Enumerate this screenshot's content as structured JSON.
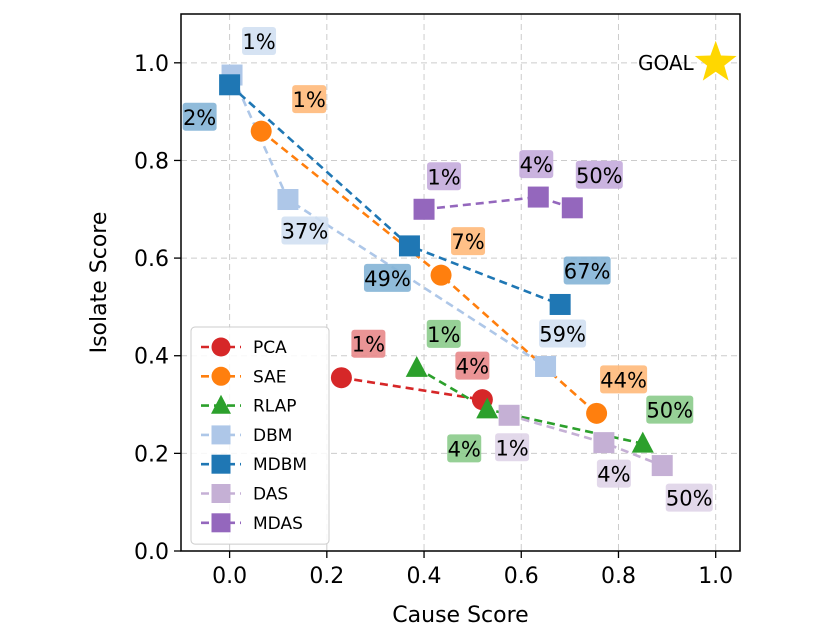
{
  "chart_data": {
    "type": "scatter",
    "xlabel": "Cause Score",
    "ylabel": "Isolate Score",
    "xlim": [
      -0.1,
      1.05
    ],
    "ylim": [
      0.0,
      1.1
    ],
    "xticks": [
      0.0,
      0.2,
      0.4,
      0.6,
      0.8,
      1.0
    ],
    "yticks": [
      0.0,
      0.2,
      0.4,
      0.6,
      0.8,
      1.0
    ],
    "xtick_labels": [
      "0.0",
      "0.2",
      "0.4",
      "0.6",
      "0.8",
      "1.0"
    ],
    "ytick_labels": [
      "0.0",
      "0.2",
      "0.4",
      "0.6",
      "0.8",
      "1.0"
    ],
    "grid": true,
    "legend_position": "lower-left",
    "goal": {
      "label": "GOAL",
      "x": 1.0,
      "y": 1.0,
      "color": "#FFD700"
    },
    "series": [
      {
        "name": "PCA",
        "color": "#d62728",
        "marker": "circle",
        "points": [
          {
            "x": 0.23,
            "y": 0.355,
            "label": "1%"
          },
          {
            "x": 0.52,
            "y": 0.31,
            "label": "4%"
          }
        ]
      },
      {
        "name": "SAE",
        "color": "#ff7f0e",
        "marker": "circle",
        "points": [
          {
            "x": 0.065,
            "y": 0.86,
            "label": "1%"
          },
          {
            "x": 0.435,
            "y": 0.565,
            "label": "7%"
          },
          {
            "x": 0.755,
            "y": 0.282,
            "label": "44%"
          }
        ]
      },
      {
        "name": "RLAP",
        "color": "#2ca02c",
        "marker": "triangle",
        "points": [
          {
            "x": 0.385,
            "y": 0.375,
            "label": "1%"
          },
          {
            "x": 0.53,
            "y": 0.29,
            "label": "4%"
          },
          {
            "x": 0.85,
            "y": 0.22,
            "label": "50%"
          }
        ]
      },
      {
        "name": "DBM",
        "color": "#aec7e8",
        "marker": "square",
        "points": [
          {
            "x": 0.005,
            "y": 0.975,
            "label": "1%"
          },
          {
            "x": 0.12,
            "y": 0.72,
            "label": "37%"
          },
          {
            "x": 0.65,
            "y": 0.378,
            "label": "59%"
          }
        ]
      },
      {
        "name": "MDBM",
        "color": "#1f77b4",
        "marker": "square",
        "points": [
          {
            "x": 0.0,
            "y": 0.955,
            "label": "2%"
          },
          {
            "x": 0.37,
            "y": 0.625,
            "label": "49%"
          },
          {
            "x": 0.68,
            "y": 0.505,
            "label": "67%"
          }
        ]
      },
      {
        "name": "DAS",
        "color": "#c5b0d5",
        "marker": "square",
        "points": [
          {
            "x": 0.575,
            "y": 0.278,
            "label": "1%"
          },
          {
            "x": 0.77,
            "y": 0.222,
            "label": "4%"
          },
          {
            "x": 0.89,
            "y": 0.175,
            "label": "50%"
          }
        ]
      },
      {
        "name": "MDAS",
        "color": "#9467bd",
        "marker": "square",
        "points": [
          {
            "x": 0.4,
            "y": 0.7,
            "label": "1%"
          },
          {
            "x": 0.635,
            "y": 0.725,
            "label": "4%"
          },
          {
            "x": 0.705,
            "y": 0.703,
            "label": "50%"
          }
        ]
      }
    ]
  }
}
